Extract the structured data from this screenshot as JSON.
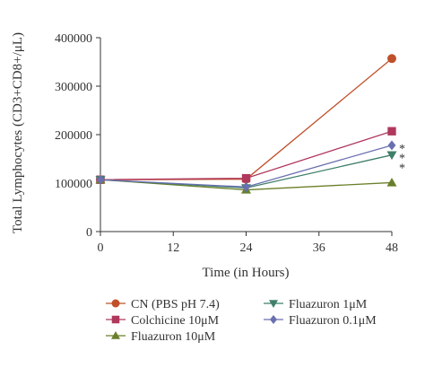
{
  "chart_data": {
    "type": "line",
    "title": "",
    "xlabel": "Time (in Hours)",
    "ylabel": "Total Lymphocytes (CD3+CD8+/μL)",
    "x": [
      0,
      24,
      48
    ],
    "x_ticks": [
      "0",
      "12",
      "24",
      "36",
      "48"
    ],
    "y_ticks": [
      "0",
      "100000",
      "200000",
      "300000",
      "400000"
    ],
    "xlim": [
      0,
      48
    ],
    "ylim": [
      0,
      400000
    ],
    "grid": false,
    "legend_position": "bottom",
    "series": [
      {
        "name": "CN (PBS pH 7.4)",
        "color": "#c0502a",
        "marker": "circle",
        "values": [
          107000,
          108000,
          357000
        ],
        "annotation": ""
      },
      {
        "name": "Colchicine 10μM",
        "color": "#b0385c",
        "marker": "square",
        "values": [
          107000,
          110000,
          207000
        ],
        "annotation": ""
      },
      {
        "name": "Fluazuron 10μM",
        "color": "#6a7f2a",
        "marker": "triangle-up",
        "values": [
          107000,
          86000,
          101000
        ],
        "annotation": ""
      },
      {
        "name": "Fluazuron 1μM",
        "color": "#3f7f6a",
        "marker": "triangle-down",
        "values": [
          107000,
          90000,
          158000
        ],
        "annotation": "*\n*"
      },
      {
        "name": "Fluazuron 0.1μM",
        "color": "#6a6fb0",
        "marker": "diamond",
        "values": [
          107000,
          92000,
          178000
        ],
        "annotation": "*"
      }
    ]
  }
}
